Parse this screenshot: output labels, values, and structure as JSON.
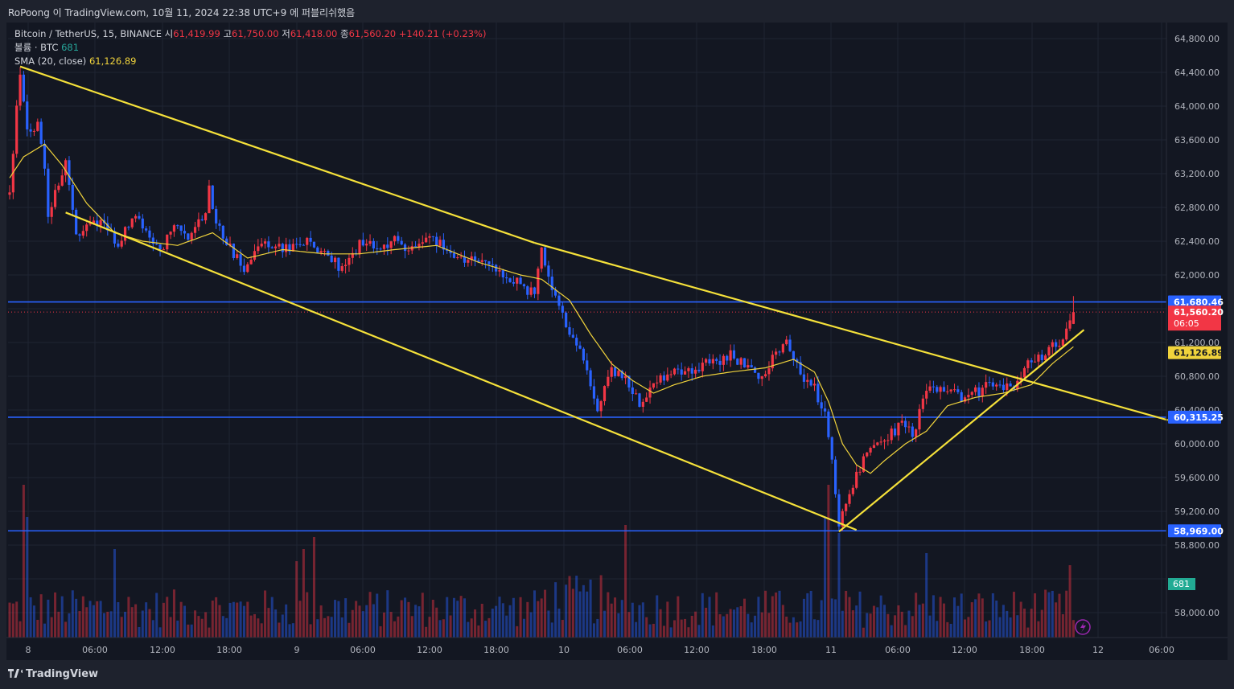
{
  "header": {
    "caption": "RoPoong 이 TradingView.com, 10월 11, 2024 22:38 UTC+9 에 퍼블리쉬했음"
  },
  "legend": {
    "symbol": "Bitcoin / TetherUS, 15, BINANCE",
    "open_label": "시",
    "open": "61,419.99",
    "high_label": "고",
    "high": "61,750.00",
    "low_label": "저",
    "low": "61,418.00",
    "close_label": "종",
    "close": "61,560.20",
    "change": "+140.21 (+0.23%)",
    "volume_label": "볼륨 · BTC",
    "volume_value": "681",
    "sma_label": "SMA (20, close)",
    "sma_value": "61,126.89"
  },
  "footer": {
    "brand": "TradingView"
  },
  "colors": {
    "background": "#131722",
    "up": "#f23645",
    "down": "#2962ff",
    "sma": "#f0d33c",
    "trendline": "#f5e13a",
    "level": "#2962ff"
  },
  "chart_data": {
    "type": "candlestick",
    "symbol": "Bitcoin / TetherUS",
    "interval": "15",
    "exchange": "BINANCE",
    "y_axis": {
      "range": [
        57800,
        65000
      ],
      "ticks": [
        58000,
        58400,
        58800,
        59200,
        59600,
        60000,
        60400,
        60800,
        61200,
        61600,
        62000,
        62400,
        62800,
        63200,
        63600,
        64000,
        64400,
        64800
      ],
      "tick_labels": [
        "58,000.00",
        "",
        "58,800.00",
        "59,200.00",
        "59,600.00",
        "60,000.00",
        "60,400.00",
        "60,800.00",
        "61,200.00",
        "",
        "62,000.00",
        "62,400.00",
        "62,800.00",
        "63,200.00",
        "63,600.00",
        "64,000.00",
        "64,400.00",
        "64,800.00"
      ]
    },
    "x_axis": {
      "labels": [
        "8",
        "06:00",
        "12:00",
        "18:00",
        "9",
        "06:00",
        "12:00",
        "18:00",
        "10",
        "06:00",
        "12:00",
        "18:00",
        "11",
        "06:00",
        "12:00",
        "18:00",
        "12",
        "06:00"
      ]
    },
    "price_path": [
      [
        0,
        62950
      ],
      [
        2,
        63950
      ],
      [
        3,
        64420
      ],
      [
        5,
        63700
      ],
      [
        8,
        63800
      ],
      [
        10,
        63300
      ],
      [
        11,
        62750
      ],
      [
        16,
        63300
      ],
      [
        19,
        62500
      ],
      [
        25,
        62650
      ],
      [
        31,
        62400
      ],
      [
        36,
        62700
      ],
      [
        43,
        62300
      ],
      [
        47,
        62550
      ],
      [
        52,
        62450
      ],
      [
        56,
        62800
      ],
      [
        57,
        63100
      ],
      [
        59,
        62600
      ],
      [
        62,
        62400
      ],
      [
        67,
        62050
      ],
      [
        72,
        62400
      ],
      [
        79,
        62300
      ],
      [
        85,
        62400
      ],
      [
        90,
        62250
      ],
      [
        96,
        62050
      ],
      [
        100,
        62400
      ],
      [
        105,
        62300
      ],
      [
        110,
        62400
      ],
      [
        116,
        62300
      ],
      [
        120,
        62500
      ],
      [
        128,
        62150
      ],
      [
        136,
        62200
      ],
      [
        140,
        62000
      ],
      [
        146,
        61900
      ],
      [
        150,
        61750
      ],
      [
        152,
        62300
      ],
      [
        156,
        61700
      ],
      [
        160,
        61300
      ],
      [
        164,
        61000
      ],
      [
        168,
        60400
      ],
      [
        172,
        60850
      ],
      [
        176,
        60750
      ],
      [
        180,
        60500
      ],
      [
        184,
        60700
      ],
      [
        188,
        60850
      ],
      [
        195,
        60900
      ],
      [
        200,
        60950
      ],
      [
        206,
        61050
      ],
      [
        210,
        60950
      ],
      [
        214,
        60750
      ],
      [
        219,
        61100
      ],
      [
        222,
        61250
      ],
      [
        224,
        60950
      ],
      [
        227,
        60800
      ],
      [
        230,
        60650
      ],
      [
        233,
        60350
      ],
      [
        234,
        60050
      ],
      [
        236,
        59450
      ],
      [
        237,
        59050
      ],
      [
        239,
        59300
      ],
      [
        242,
        59650
      ],
      [
        245,
        59850
      ],
      [
        250,
        60050
      ],
      [
        255,
        60250
      ],
      [
        258,
        60100
      ],
      [
        262,
        60650
      ],
      [
        268,
        60600
      ],
      [
        274,
        60550
      ],
      [
        280,
        60700
      ],
      [
        286,
        60650
      ],
      [
        290,
        60900
      ],
      [
        295,
        61050
      ],
      [
        300,
        61200
      ],
      [
        304,
        61560
      ]
    ],
    "sma_20": {
      "last": 61126.89,
      "path": [
        [
          0,
          63150
        ],
        [
          4,
          63400
        ],
        [
          10,
          63550
        ],
        [
          15,
          63300
        ],
        [
          22,
          62850
        ],
        [
          30,
          62500
        ],
        [
          38,
          62400
        ],
        [
          48,
          62350
        ],
        [
          58,
          62500
        ],
        [
          68,
          62200
        ],
        [
          78,
          62300
        ],
        [
          90,
          62250
        ],
        [
          100,
          62250
        ],
        [
          110,
          62300
        ],
        [
          122,
          62350
        ],
        [
          134,
          62150
        ],
        [
          146,
          62000
        ],
        [
          152,
          61950
        ],
        [
          160,
          61700
        ],
        [
          166,
          61300
        ],
        [
          172,
          60950
        ],
        [
          178,
          60750
        ],
        [
          184,
          60600
        ],
        [
          190,
          60700
        ],
        [
          198,
          60800
        ],
        [
          206,
          60850
        ],
        [
          216,
          60900
        ],
        [
          224,
          61000
        ],
        [
          230,
          60850
        ],
        [
          234,
          60500
        ],
        [
          238,
          60000
        ],
        [
          242,
          59750
        ],
        [
          246,
          59650
        ],
        [
          250,
          59800
        ],
        [
          256,
          60000
        ],
        [
          262,
          60150
        ],
        [
          268,
          60450
        ],
        [
          276,
          60550
        ],
        [
          284,
          60600
        ],
        [
          292,
          60700
        ],
        [
          298,
          60950
        ],
        [
          304,
          61150
        ]
      ]
    },
    "horizontal_levels": [
      {
        "price": 61680.46,
        "label": "61,680.46"
      },
      {
        "price": 60315.25,
        "label": "60,315.25"
      },
      {
        "price": 58969.0,
        "label": "58,969.00"
      }
    ],
    "price_tags": [
      {
        "price": 61560.2,
        "label": "61,560.20",
        "sublabel": "06:05"
      },
      {
        "price": 61126.89,
        "label": "61,126.89"
      }
    ],
    "volume": {
      "last": 681,
      "label": "681"
    },
    "trendlines": [
      {
        "from": [
          3,
          64470
        ],
        "to": [
          150,
          62380
        ]
      },
      {
        "from": [
          16,
          62740
        ],
        "to": [
          242,
          58980
        ]
      },
      {
        "from": [
          150,
          62380
        ],
        "to": [
          331,
          60280
        ]
      },
      {
        "from": [
          237,
          58960
        ],
        "to": [
          307,
          61350
        ]
      }
    ]
  }
}
